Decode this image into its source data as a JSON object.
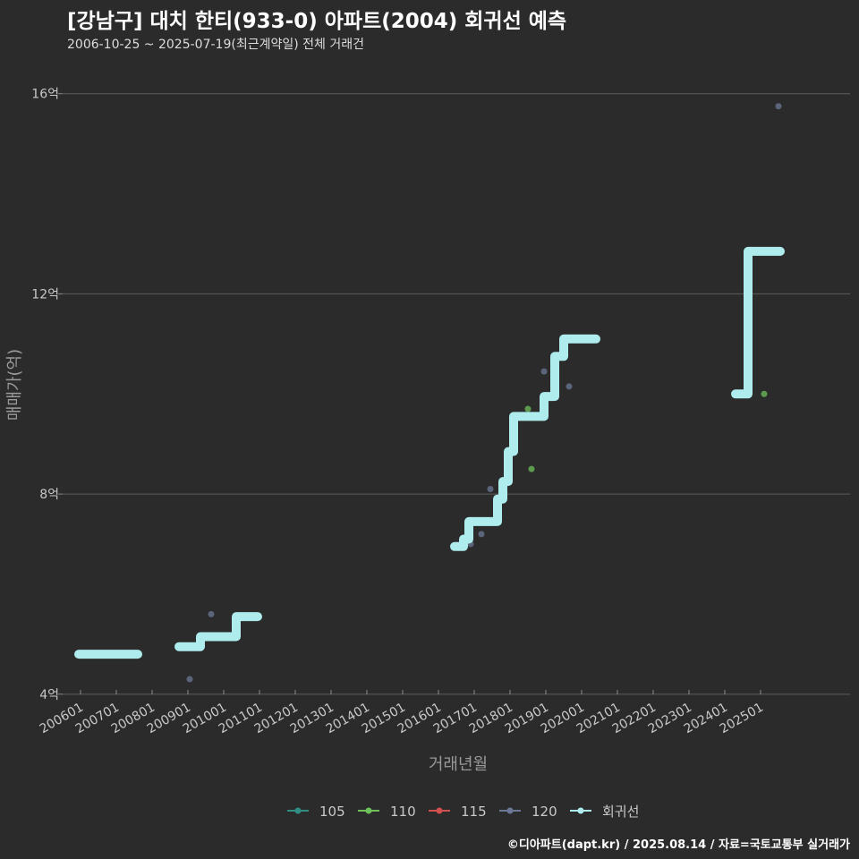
{
  "title": "[강남구] 대치 한티(933-0) 아파트(2004) 회귀선 예측",
  "subtitle": "2006-10-25 ~ 2025-07-19(최근계약일) 전체 거래건",
  "footer": "©디아파트(dapt.kr) / 2025.08.14 / 자료=국토교통부 실거래가",
  "colors": {
    "background": "#2b2b2c",
    "grid": "#5e5e5e",
    "text": "#c8c8c8",
    "regression": "#aeeced"
  },
  "chart_data": {
    "type": "scatter",
    "xlabel": "거래년월",
    "ylabel": "매매가(억)",
    "x_range": [
      2005.5,
      2027.5
    ],
    "ylim": [
      3.8,
      16.8
    ],
    "y_ticks": [
      {
        "value": 4,
        "label": "4억"
      },
      {
        "value": 8,
        "label": "8억"
      },
      {
        "value": 12,
        "label": "12억"
      },
      {
        "value": 16,
        "label": "16억"
      }
    ],
    "x_ticks": [
      {
        "value": 2006,
        "label": "200601"
      },
      {
        "value": 2007,
        "label": "200701"
      },
      {
        "value": 2008,
        "label": "200801"
      },
      {
        "value": 2009,
        "label": "200901"
      },
      {
        "value": 2010,
        "label": "201001"
      },
      {
        "value": 2011,
        "label": "201101"
      },
      {
        "value": 2012,
        "label": "201201"
      },
      {
        "value": 2013,
        "label": "201301"
      },
      {
        "value": 2014,
        "label": "201401"
      },
      {
        "value": 2015,
        "label": "201501"
      },
      {
        "value": 2016,
        "label": "201601"
      },
      {
        "value": 2017,
        "label": "201701"
      },
      {
        "value": 2018,
        "label": "201801"
      },
      {
        "value": 2019,
        "label": "201901"
      },
      {
        "value": 2020,
        "label": "202001"
      },
      {
        "value": 2021,
        "label": "202101"
      },
      {
        "value": 2022,
        "label": "202201"
      },
      {
        "value": 2023,
        "label": "202301"
      },
      {
        "value": 2024,
        "label": "202401"
      },
      {
        "value": 2025,
        "label": "202501"
      }
    ],
    "series": [
      {
        "name": "105",
        "color": "#2f8f84",
        "points": []
      },
      {
        "name": "110",
        "color": "#6ec05a",
        "points": [
          {
            "x": 2018.6,
            "y": 8.5
          },
          {
            "x": 2018.5,
            "y": 9.7
          },
          {
            "x": 2025.1,
            "y": 10.0
          }
        ]
      },
      {
        "name": "115",
        "color": "#d25050",
        "points": []
      },
      {
        "name": "120",
        "color": "#6b7896",
        "points": [
          {
            "x": 2009.05,
            "y": 4.3
          },
          {
            "x": 2009.65,
            "y": 5.6
          },
          {
            "x": 2016.9,
            "y": 7.0
          },
          {
            "x": 2017.2,
            "y": 7.2
          },
          {
            "x": 2017.45,
            "y": 8.1
          },
          {
            "x": 2018.95,
            "y": 10.45
          },
          {
            "x": 2019.65,
            "y": 10.15
          },
          {
            "x": 2025.5,
            "y": 15.75
          }
        ]
      }
    ],
    "regression": {
      "name": "회귀선",
      "segments": [
        [
          [
            2005.95,
            4.8
          ],
          [
            2007.6,
            4.8
          ]
        ],
        [
          [
            2008.75,
            4.95
          ],
          [
            2009.35,
            4.95
          ],
          [
            2009.35,
            5.15
          ],
          [
            2010.35,
            5.15
          ],
          [
            2010.35,
            5.55
          ],
          [
            2010.95,
            5.55
          ]
        ],
        [
          [
            2016.45,
            6.95
          ],
          [
            2016.7,
            6.95
          ],
          [
            2016.7,
            7.1
          ],
          [
            2016.85,
            7.1
          ],
          [
            2016.85,
            7.45
          ],
          [
            2017.65,
            7.45
          ],
          [
            2017.65,
            7.9
          ],
          [
            2017.8,
            7.9
          ],
          [
            2017.8,
            8.25
          ],
          [
            2017.95,
            8.25
          ],
          [
            2017.95,
            8.85
          ],
          [
            2018.1,
            8.85
          ],
          [
            2018.1,
            9.55
          ],
          [
            2018.95,
            9.55
          ],
          [
            2018.95,
            9.95
          ],
          [
            2019.25,
            9.95
          ],
          [
            2019.25,
            10.75
          ],
          [
            2019.5,
            10.75
          ],
          [
            2019.5,
            11.1
          ],
          [
            2020.4,
            11.1
          ]
        ],
        [
          [
            2024.3,
            10.0
          ],
          [
            2024.65,
            10.0
          ],
          [
            2024.65,
            12.85
          ],
          [
            2025.55,
            12.85
          ]
        ]
      ]
    }
  }
}
